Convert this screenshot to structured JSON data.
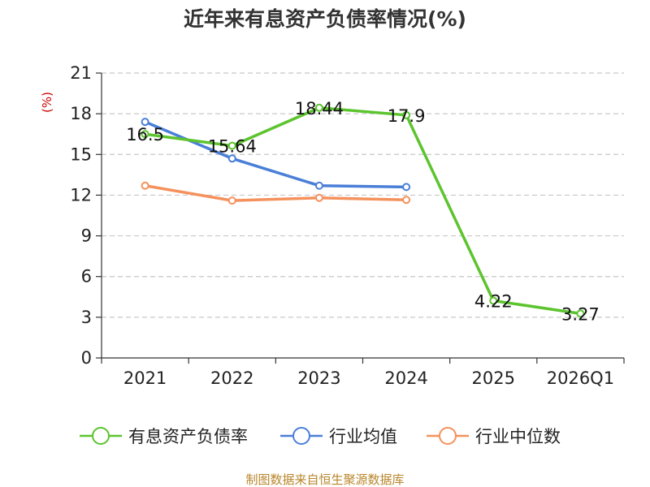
{
  "chart_data": {
    "type": "line",
    "title": "近年来有息资产负债率情况(%)",
    "ylabel": "(%)",
    "xlabel": "",
    "categories": [
      "2021",
      "2022",
      "2023",
      "2024",
      "2025",
      "2026Q1"
    ],
    "yticks": [
      0,
      3,
      6,
      9,
      12,
      15,
      18,
      21
    ],
    "ylim": [
      0,
      21
    ],
    "grid": true,
    "legend_position": "bottom",
    "series": [
      {
        "name": "有息资产负债率",
        "color": "#5cc42e",
        "values": [
          16.5,
          15.64,
          18.44,
          17.9,
          4.22,
          3.27
        ],
        "labels": [
          "16.5",
          "15.64",
          "18.44",
          "17.9",
          "4.22",
          "3.27"
        ]
      },
      {
        "name": "行业均值",
        "color": "#4a7fd8",
        "values": [
          17.4,
          14.7,
          12.7,
          12.6,
          null,
          null
        ]
      },
      {
        "name": "行业中位数",
        "color": "#f5915c",
        "values": [
          12.7,
          11.6,
          11.8,
          11.65,
          null,
          null
        ]
      }
    ]
  },
  "footer": {
    "source": "制图数据来自恒生聚源数据库"
  }
}
